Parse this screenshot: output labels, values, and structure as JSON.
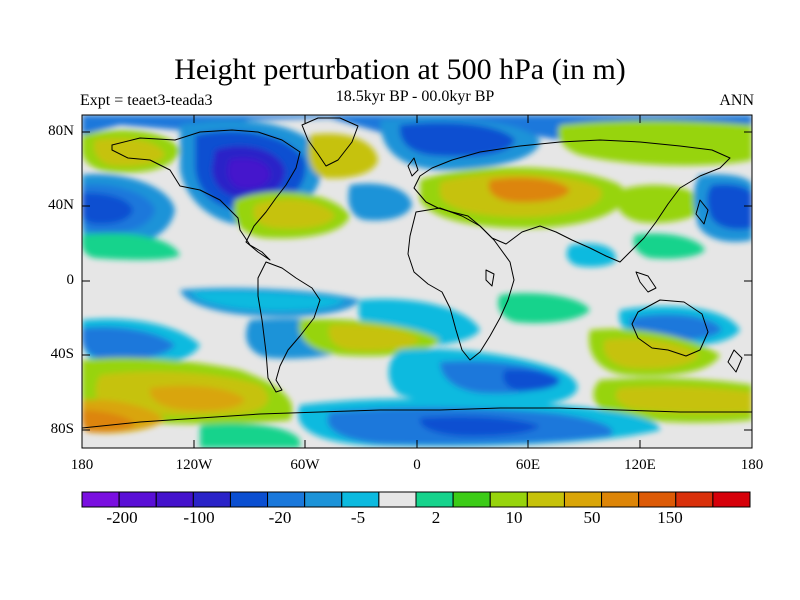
{
  "title": "Height perturbation at 500 hPa (in m)",
  "subtitle": "18.5kyr BP - 00.0kyr BP",
  "left_label": "Expt = teaet3-teada3",
  "right_label": "ANN",
  "y_ticks": [
    "80N",
    "40N",
    "0",
    "40S",
    "80S"
  ],
  "x_ticks": [
    "180",
    "120W",
    "60W",
    "0",
    "60E",
    "120E",
    "180"
  ],
  "colorbar": {
    "colors": [
      "#7a0fe0",
      "#5a0fd6",
      "#4412cc",
      "#2a23c8",
      "#0b4fd1",
      "#1a78db",
      "#1c93d8",
      "#0cbadf",
      "#e6e6e6",
      "#16d38c",
      "#3ccc17",
      "#97d40c",
      "#c6c20a",
      "#d9a508",
      "#dd8507",
      "#dc5a06",
      "#d9300a",
      "#d6000a"
    ],
    "labels": [
      "-200",
      "-100",
      "-20",
      "-5",
      "2",
      "10",
      "50",
      "150"
    ]
  }
}
